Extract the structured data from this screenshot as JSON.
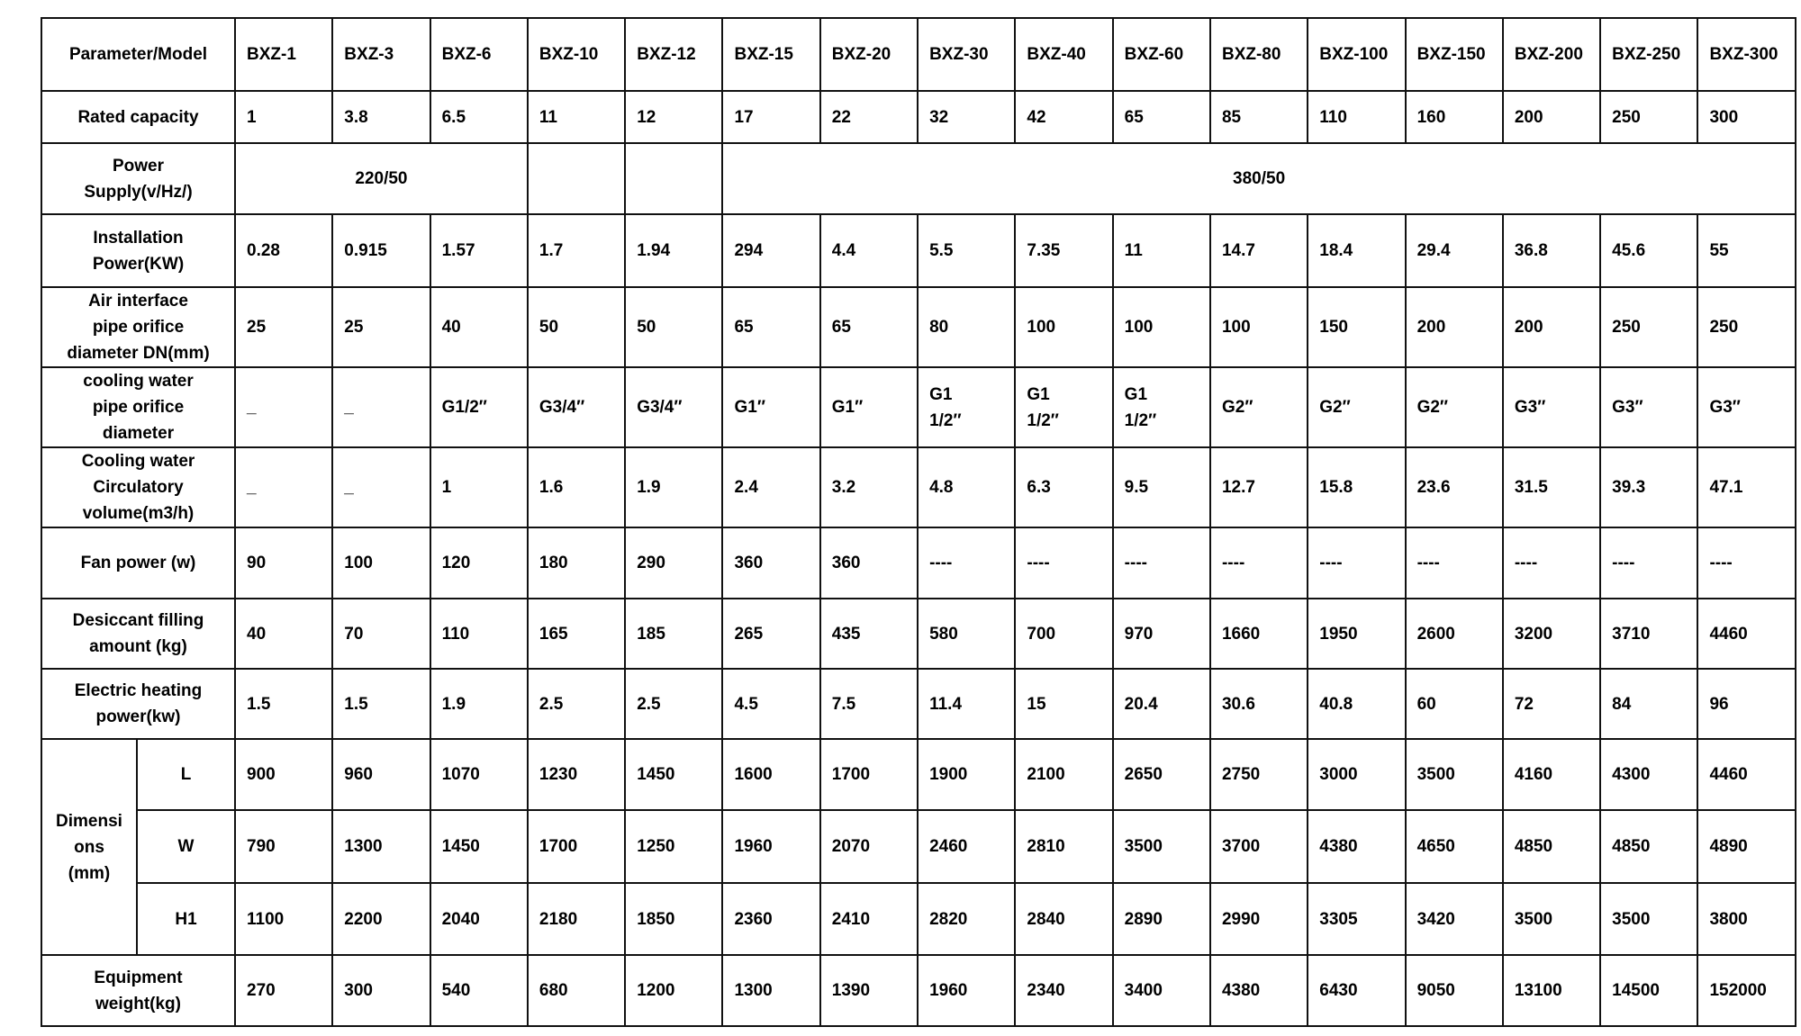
{
  "table": {
    "header": {
      "label": "Parameter/Model",
      "models": [
        "BXZ-1",
        "BXZ-3",
        "BXZ-6",
        "BXZ-10",
        "BXZ-12",
        "BXZ-15",
        "BXZ-20",
        "BXZ-30",
        "BXZ-40",
        "BXZ-60",
        "BXZ-80",
        "BXZ-100",
        "BXZ-150",
        "BXZ-200",
        "BXZ-250",
        "BXZ-300"
      ]
    },
    "rows": [
      {
        "label": "Rated capacity",
        "values": [
          "1",
          "3.8",
          "6.5",
          "11",
          "12",
          "17",
          "22",
          "32",
          "42",
          "65",
          "85",
          "110",
          "160",
          "200",
          "250",
          "300"
        ]
      },
      {
        "label": "Power\nSupply(v/Hz/)",
        "spans": [
          {
            "text": "220/50",
            "span": 3
          },
          {
            "text": "",
            "span": 1
          },
          {
            "text": "",
            "span": 1
          },
          {
            "text": "380/50",
            "span": 11
          }
        ]
      },
      {
        "label": "Installation\nPower(KW)",
        "values": [
          "0.28",
          "0.915",
          "1.57",
          "1.7",
          "1.94",
          "294",
          "4.4",
          "5.5",
          "7.35",
          "11",
          "14.7",
          "18.4",
          "29.4",
          "36.8",
          "45.6",
          "55"
        ]
      },
      {
        "label": "Air interface\npipe orifice\ndiameter DN(mm)",
        "values": [
          "25",
          "25",
          "40",
          "50",
          "50",
          "65",
          "65",
          "80",
          "100",
          "100",
          "100",
          "150",
          "200",
          "200",
          "250",
          "250"
        ]
      },
      {
        "label": "cooling water\npipe orifice\ndiameter",
        "values": [
          "_",
          "_",
          "G1/2″",
          "G3/4″",
          "G3/4″",
          "G1″",
          "G1″",
          "G1\n1/2″",
          "G1\n1/2″",
          "G1\n1/2″",
          "G2″",
          "G2″",
          "G2″",
          "G3″",
          "G3″",
          "G3″"
        ]
      },
      {
        "label": "Cooling water\nCirculatory\nvolume(m3/h)",
        "values": [
          "_",
          "_",
          "1",
          "1.6",
          "1.9",
          "2.4",
          "3.2",
          "4.8",
          "6.3",
          "9.5",
          "12.7",
          "15.8",
          "23.6",
          "31.5",
          "39.3",
          "47.1"
        ]
      },
      {
        "label": "Fan power (w)",
        "values": [
          "90",
          "100",
          "120",
          "180",
          "290",
          "360",
          "360",
          "----",
          "----",
          "----",
          "----",
          "----",
          "----",
          "----",
          "----",
          "----"
        ]
      },
      {
        "label": "Desiccant filling\namount  (kg)",
        "values": [
          "40",
          "70",
          "110",
          "165",
          "185",
          "265",
          "435",
          "580",
          "700",
          "970",
          "1660",
          "1950",
          "2600",
          "3200",
          "3710",
          "4460"
        ]
      },
      {
        "label": "Electric heating\npower(kw)",
        "values": [
          "1.5",
          "1.5",
          "1.9",
          "2.5",
          "2.5",
          "4.5",
          "7.5",
          "11.4",
          "15",
          "20.4",
          "30.6",
          "40.8",
          "60",
          "72",
          "84",
          "96"
        ]
      }
    ],
    "dimensions": {
      "label": "Dimensi\nons\n(mm)",
      "rows": [
        {
          "label": "L",
          "values": [
            "900",
            "960",
            "1070",
            "1230",
            "1450",
            "1600",
            "1700",
            "1900",
            "2100",
            "2650",
            "2750",
            "3000",
            "3500",
            "4160",
            "4300",
            "4460"
          ]
        },
        {
          "label": "W",
          "values": [
            "790",
            "1300",
            "1450",
            "1700",
            "1250",
            "1960",
            "2070",
            "2460",
            "2810",
            "3500",
            "3700",
            "4380",
            "4650",
            "4850",
            "4850",
            "4890"
          ]
        },
        {
          "label": "H1",
          "values": [
            "1100",
            "2200",
            "2040",
            "2180",
            "1850",
            "2360",
            "2410",
            "2820",
            "2840",
            "2890",
            "2990",
            "3305",
            "3420",
            "3500",
            "3500",
            "3800"
          ]
        }
      ]
    },
    "weight": {
      "label": "Equipment\nweight(kg)",
      "values": [
        "270",
        "300",
        "540",
        "680",
        "1200",
        "1300",
        "1390",
        "1960",
        "2340",
        "3400",
        "4380",
        "6430",
        "9050",
        "13100",
        "14500",
        "152000"
      ]
    }
  }
}
